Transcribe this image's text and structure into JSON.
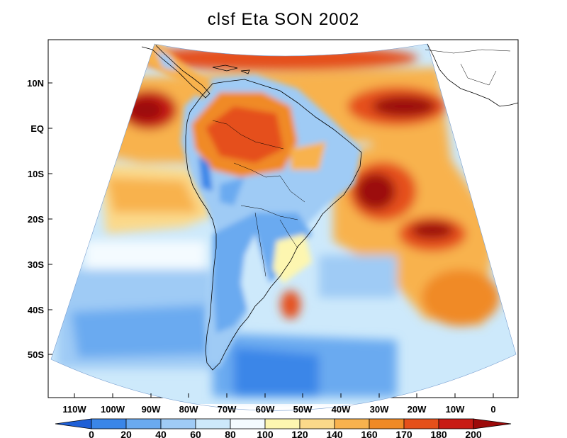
{
  "title": "clsf Eta SON 2002",
  "lat_labels": [
    "10N",
    "EQ",
    "10S",
    "20S",
    "30S",
    "40S",
    "50S"
  ],
  "lon_labels": [
    "110W",
    "100W",
    "90W",
    "80W",
    "70W",
    "60W",
    "50W",
    "40W",
    "30W",
    "20W",
    "10W",
    "0"
  ],
  "colorbar": {
    "levels": [
      "0",
      "20",
      "40",
      "60",
      "80",
      "100",
      "120",
      "140",
      "160",
      "170",
      "180",
      "200"
    ],
    "colors": [
      "#1e5fd6",
      "#3a86e8",
      "#6aaaf0",
      "#9fcbf5",
      "#cde9fb",
      "#f4fbff",
      "#fdf6b0",
      "#fbd98a",
      "#f8b24e",
      "#f08a26",
      "#e5501a",
      "#c81b14",
      "#9c0a0a"
    ]
  }
}
